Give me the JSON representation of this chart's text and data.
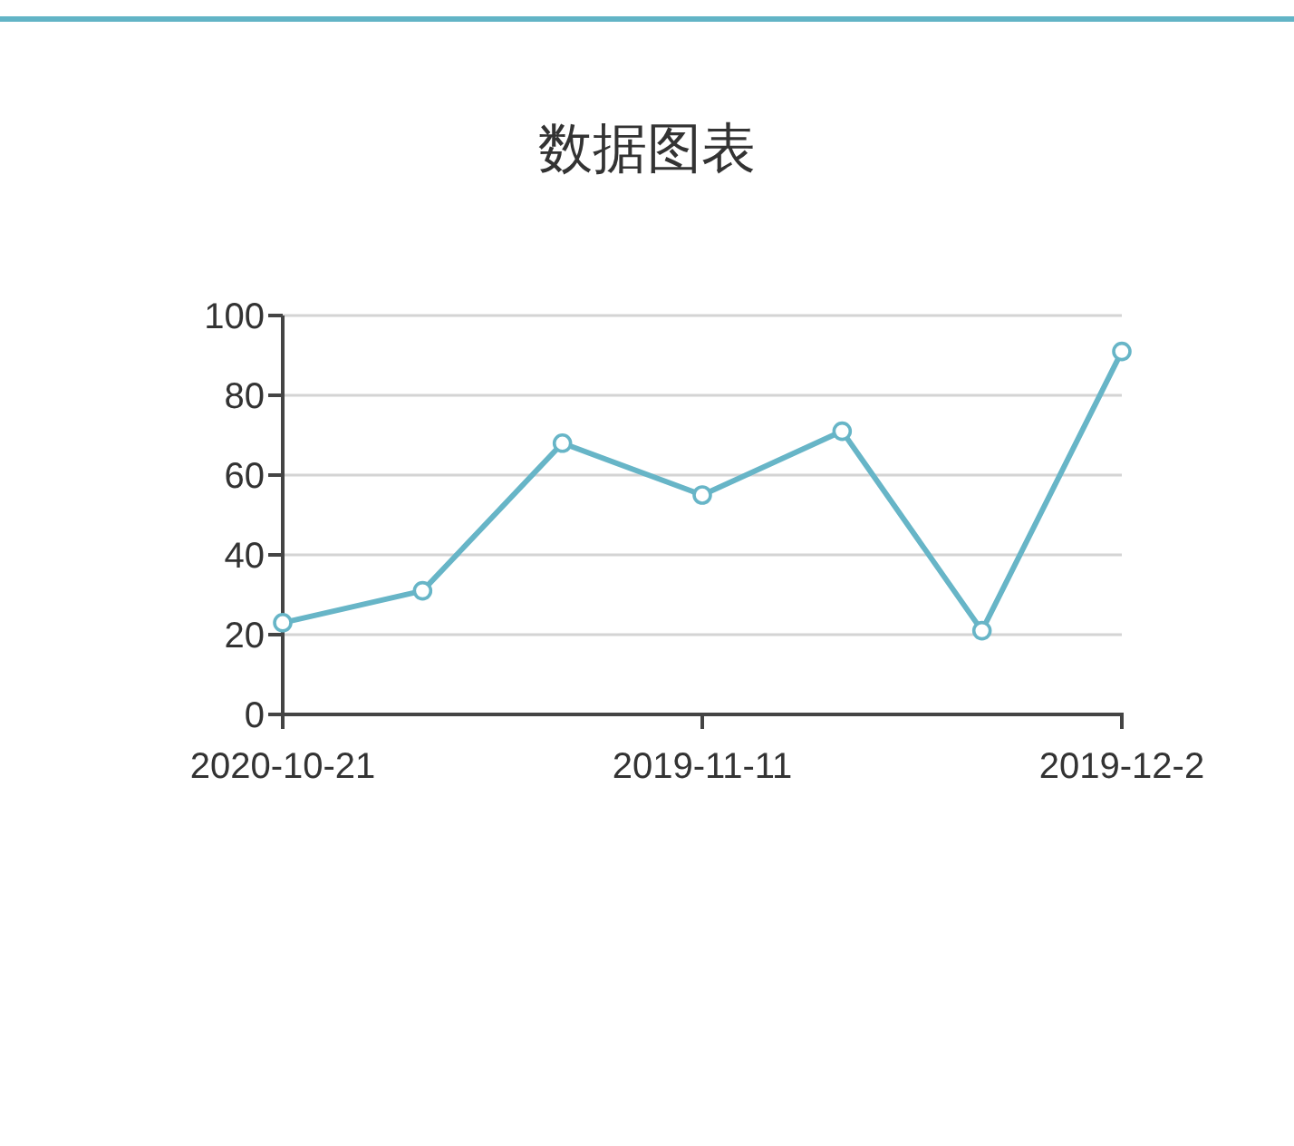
{
  "chart_data": {
    "type": "line",
    "title": "数据图表",
    "categories": [
      "2020-10-21",
      null,
      null,
      "2019-11-11",
      null,
      null,
      "2019-12-2"
    ],
    "values": [
      23,
      31,
      68,
      55,
      71,
      21,
      91
    ],
    "color": "#67b5c7",
    "ylim": [
      0,
      100
    ],
    "yticks": [
      0,
      20,
      40,
      60,
      80,
      100
    ],
    "grid": "y",
    "marker": "circle",
    "line_style": "solid"
  }
}
